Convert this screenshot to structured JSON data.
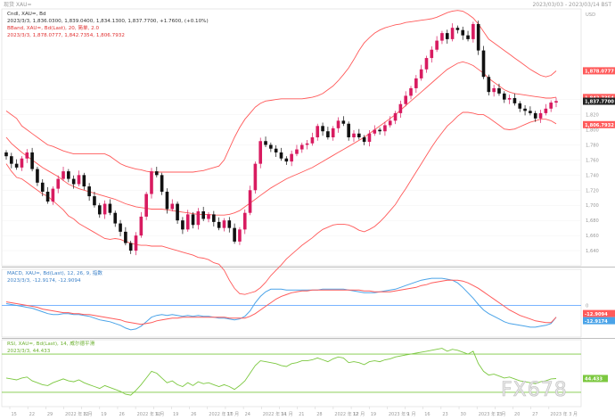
{
  "header": {
    "title": "现货 XAU=",
    "datetime": "2023/03/03 - 2023/03/14 BST"
  },
  "watermark": "FX678",
  "colors": {
    "candle": "#d81b60",
    "candle_down": "#111111",
    "bollinger": "#ff5a5a",
    "macd": "#4aa3e8",
    "signal": "#ff5a5a",
    "rsi": "#7cc840",
    "rsi_bounds": "#7cc840",
    "zero_line": "#66aaff"
  },
  "chart_data": [
    {
      "type": "candlestick",
      "legend": [
        "Cndl, XAU=, Bd",
        "2023/3/3, 1,836.0300, 1,839.0400, 1,834.1300, 1,837.7700, +1.7600, (+0.10%)",
        "BBand, XAU=, Bd(Last), 20, 简单, 2.0",
        "2023/3/3, 1,878.0777, 1,842.7354, 1,806.7932"
      ],
      "y_unit": "USD",
      "y_ticks": [
        1840,
        1820,
        1800,
        1780,
        1760,
        1740,
        1720,
        1700,
        1680,
        1660,
        1640
      ],
      "ylim": [
        1620,
        1960
      ],
      "tags": [
        {
          "label": "1,878.0777",
          "value": 1878.08,
          "color": "#ff5a5a"
        },
        {
          "label": "1,842.7354",
          "value": 1842.74,
          "color": "#ff5a5a"
        },
        {
          "label": "1,837.7700",
          "value": 1837.77,
          "color": "#222222"
        },
        {
          "label": "1,806.7932",
          "value": 1806.79,
          "color": "#ff5a5a"
        }
      ],
      "close": [
        1765,
        1755,
        1750,
        1762,
        1770,
        1748,
        1730,
        1718,
        1705,
        1722,
        1735,
        1745,
        1735,
        1728,
        1740,
        1725,
        1712,
        1700,
        1688,
        1702,
        1690,
        1676,
        1665,
        1650,
        1640,
        1660,
        1685,
        1715,
        1745,
        1740,
        1718,
        1695,
        1702,
        1680,
        1668,
        1688,
        1674,
        1692,
        1682,
        1688,
        1678,
        1670,
        1680,
        1670,
        1652,
        1668,
        1690,
        1720,
        1755,
        1785,
        1780,
        1775,
        1770,
        1762,
        1758,
        1768,
        1774,
        1780,
        1782,
        1790,
        1805,
        1798,
        1790,
        1802,
        1812,
        1808,
        1790,
        1795,
        1790,
        1784,
        1795,
        1800,
        1798,
        1806,
        1812,
        1822,
        1834,
        1845,
        1855,
        1868,
        1880,
        1895,
        1906,
        1918,
        1928,
        1920,
        1935,
        1932,
        1925,
        1920,
        1940,
        1905,
        1870,
        1850,
        1855,
        1848,
        1840,
        1842,
        1835,
        1828,
        1825,
        1822,
        1815,
        1822,
        1828,
        1836,
        1838
      ],
      "bb_upper": [
        1825,
        1820,
        1815,
        1805,
        1800,
        1795,
        1790,
        1785,
        1780,
        1778,
        1775,
        1772,
        1770,
        1768,
        1768,
        1768,
        1768,
        1768,
        1768,
        1768,
        1765,
        1760,
        1755,
        1752,
        1750,
        1748,
        1747,
        1745,
        1744,
        1744,
        1744,
        1744,
        1744,
        1744,
        1744,
        1744,
        1744,
        1745,
        1746,
        1748,
        1750,
        1752,
        1760,
        1775,
        1790,
        1803,
        1814,
        1822,
        1830,
        1835,
        1838,
        1839,
        1840,
        1841,
        1841,
        1841,
        1841,
        1841,
        1842,
        1843,
        1845,
        1848,
        1853,
        1858,
        1865,
        1873,
        1882,
        1893,
        1905,
        1915,
        1922,
        1928,
        1932,
        1935,
        1937,
        1939,
        1940,
        1942,
        1943,
        1944,
        1945,
        1946,
        1947,
        1949,
        1952,
        1955,
        1957,
        1958,
        1957,
        1953,
        1948,
        1940,
        1930,
        1920,
        1915,
        1910,
        1905,
        1900,
        1895,
        1890,
        1885,
        1880,
        1876,
        1872,
        1870,
        1872,
        1878
      ],
      "bb_mid": [
        1790,
        1782,
        1776,
        1770,
        1765,
        1760,
        1755,
        1750,
        1746,
        1742,
        1738,
        1733,
        1728,
        1725,
        1722,
        1720,
        1718,
        1716,
        1714,
        1712,
        1710,
        1708,
        1705,
        1702,
        1700,
        1698,
        1697,
        1696,
        1695,
        1695,
        1695,
        1694,
        1693,
        1692,
        1691,
        1690,
        1689,
        1688,
        1688,
        1688,
        1687,
        1687,
        1687,
        1688,
        1690,
        1693,
        1698,
        1703,
        1708,
        1713,
        1718,
        1723,
        1727,
        1731,
        1735,
        1738,
        1741,
        1744,
        1747,
        1750,
        1754,
        1758,
        1762,
        1766,
        1770,
        1774,
        1778,
        1782,
        1786,
        1790,
        1795,
        1800,
        1805,
        1810,
        1815,
        1820,
        1826,
        1832,
        1838,
        1844,
        1850,
        1856,
        1862,
        1868,
        1874,
        1880,
        1884,
        1888,
        1890,
        1888,
        1885,
        1880,
        1875,
        1868,
        1863,
        1858,
        1853,
        1850,
        1848,
        1847,
        1846,
        1845,
        1844,
        1843,
        1842,
        1842,
        1843
      ],
      "bb_lower": [
        1755,
        1745,
        1737,
        1735,
        1730,
        1725,
        1720,
        1715,
        1712,
        1706,
        1700,
        1694,
        1686,
        1682,
        1676,
        1672,
        1668,
        1664,
        1660,
        1656,
        1655,
        1656,
        1655,
        1652,
        1650,
        1648,
        1647,
        1647,
        1646,
        1646,
        1646,
        1644,
        1642,
        1640,
        1638,
        1636,
        1634,
        1631,
        1630,
        1628,
        1624,
        1622,
        1614,
        1601,
        1590,
        1583,
        1582,
        1584,
        1586,
        1591,
        1598,
        1607,
        1614,
        1621,
        1629,
        1635,
        1641,
        1647,
        1652,
        1657,
        1663,
        1668,
        1671,
        1674,
        1675,
        1675,
        1674,
        1671,
        1667,
        1665,
        1668,
        1672,
        1678,
        1685,
        1693,
        1701,
        1712,
        1722,
        1733,
        1744,
        1755,
        1766,
        1777,
        1787,
        1796,
        1805,
        1811,
        1818,
        1823,
        1823,
        1822,
        1820,
        1820,
        1816,
        1811,
        1806,
        1801,
        1800,
        1801,
        1804,
        1807,
        1810,
        1812,
        1814,
        1814,
        1812,
        1808
      ]
    },
    {
      "type": "line",
      "legend": [
        "MACD, XAU=, Bd(Last), 12, 26, 9, 指数",
        "2023/3/3, -12.9174, -12.9094"
      ],
      "y_ticks": [
        0
      ],
      "ylim": [
        -35,
        40
      ],
      "tags": [
        {
          "label": "-12.9094",
          "value": -12.9094,
          "color": "#ff5a5a"
        },
        {
          "label": "-12.9174",
          "value": -12.9174,
          "color": "#4aa3e8"
        }
      ],
      "series": [
        {
          "name": "MACD",
          "values": [
            2,
            1,
            0,
            -1,
            -2,
            -3,
            -5,
            -7,
            -9,
            -10,
            -10,
            -9,
            -9,
            -10,
            -10,
            -11,
            -12,
            -14,
            -16,
            -17,
            -18,
            -20,
            -22,
            -25,
            -27,
            -26,
            -23,
            -18,
            -13,
            -11,
            -10,
            -11,
            -10,
            -11,
            -12,
            -11,
            -12,
            -11,
            -12,
            -12,
            -13,
            -14,
            -14,
            -15,
            -16,
            -15,
            -12,
            -6,
            3,
            10,
            15,
            18,
            18,
            18,
            17,
            17,
            17,
            17,
            17,
            17,
            17,
            18,
            18,
            18,
            18,
            18,
            17,
            16,
            15,
            14,
            14,
            14,
            15,
            16,
            17,
            18,
            20,
            22,
            24,
            26,
            28,
            29,
            30,
            30,
            30,
            29,
            28,
            25,
            20,
            14,
            8,
            1,
            -5,
            -9,
            -12,
            -15,
            -18,
            -20,
            -21,
            -22,
            -23,
            -24,
            -24,
            -23,
            -22,
            -20,
            -13
          ]
        },
        {
          "name": "Signal",
          "values": [
            4,
            3,
            2,
            1,
            0,
            -1,
            -2,
            -4,
            -5,
            -6,
            -7,
            -8,
            -8,
            -9,
            -9,
            -10,
            -10,
            -11,
            -12,
            -13,
            -14,
            -15,
            -16,
            -18,
            -19,
            -20,
            -21,
            -20,
            -19,
            -17,
            -16,
            -15,
            -14,
            -14,
            -13,
            -13,
            -13,
            -13,
            -13,
            -13,
            -13,
            -13,
            -13,
            -14,
            -14,
            -14,
            -14,
            -12,
            -9,
            -5,
            -1,
            3,
            7,
            10,
            12,
            14,
            15,
            16,
            16,
            17,
            17,
            17,
            17,
            17,
            17,
            17,
            17,
            17,
            17,
            16,
            16,
            15,
            15,
            15,
            15,
            16,
            17,
            18,
            19,
            20,
            22,
            23,
            25,
            26,
            27,
            28,
            28,
            28,
            27,
            25,
            22,
            19,
            15,
            11,
            7,
            3,
            -1,
            -5,
            -8,
            -11,
            -13,
            -15,
            -17,
            -18,
            -19,
            -19,
            -13
          ]
        }
      ]
    },
    {
      "type": "line",
      "legend": [
        "RSI, XAU=, Bd(Last), 14, 威尔德平滑",
        "2023/3/3, 44.433"
      ],
      "y_ticks": [],
      "ylim": [
        15,
        85
      ],
      "tags": [
        {
          "label": "44.433",
          "value": 44.433,
          "color": "#7cc840"
        }
      ],
      "bounds": [
        70,
        30
      ],
      "series": [
        {
          "name": "RSI",
          "values": [
            45,
            44,
            43,
            45,
            46,
            42,
            40,
            38,
            37,
            40,
            42,
            44,
            42,
            41,
            43,
            40,
            38,
            36,
            34,
            37,
            35,
            33,
            31,
            28,
            27,
            32,
            38,
            45,
            52,
            50,
            45,
            40,
            42,
            38,
            36,
            40,
            37,
            41,
            39,
            40,
            38,
            36,
            38,
            36,
            33,
            37,
            42,
            50,
            58,
            63,
            62,
            61,
            60,
            58,
            57,
            60,
            61,
            63,
            63,
            64,
            66,
            64,
            62,
            65,
            67,
            66,
            61,
            62,
            61,
            59,
            62,
            63,
            62,
            64,
            65,
            67,
            68,
            69,
            70,
            71,
            72,
            73,
            74,
            75,
            76,
            73,
            75,
            74,
            72,
            70,
            73,
            60,
            52,
            48,
            49,
            47,
            45,
            46,
            44,
            42,
            41,
            40,
            39,
            41,
            42,
            44,
            44.4
          ]
        }
      ]
    }
  ],
  "x_axis": {
    "labels": [
      "15",
      "22",
      "29",
      "2022 年 8 月",
      "12",
      "19",
      "26",
      "2022 年 9 月",
      "12",
      "19",
      "26",
      "2022 年 10 月",
      "17",
      "24",
      "2022 年 11 月",
      "14",
      "21",
      "28",
      "2022 年 12 月",
      "12",
      "19",
      "2023 年 1 月",
      "9",
      "16",
      "23",
      "30",
      "2023 年 2 月",
      "13",
      "20",
      "27",
      "2023 年 3 月"
    ]
  }
}
